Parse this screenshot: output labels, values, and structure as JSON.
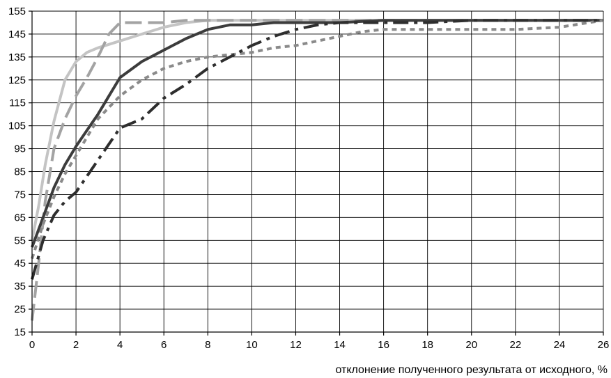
{
  "chart_data": {
    "type": "line",
    "title": "",
    "xlabel": "отклонение полученного результата от исходного, %",
    "ylabel": "",
    "xlim": [
      0,
      26
    ],
    "ylim": [
      15,
      155
    ],
    "xticks": [
      "0",
      "2",
      "4",
      "6",
      "8",
      "10",
      "12",
      "14",
      "16",
      "18",
      "20",
      "22",
      "24",
      "26"
    ],
    "yticks": [
      "15",
      "25",
      "35",
      "45",
      "55",
      "65",
      "75",
      "85",
      "95",
      "105",
      "115",
      "125",
      "135",
      "145",
      "155"
    ],
    "grid": true,
    "legend": "none",
    "series": [
      {
        "color": "#c4c4c4",
        "dash": "solid",
        "x": [
          0,
          0.3,
          0.6,
          1,
          1.5,
          2,
          2.5,
          3,
          4,
          5,
          6,
          7,
          8,
          10,
          12,
          14,
          16,
          18,
          20,
          22,
          24,
          26
        ],
        "y": [
          55,
          70,
          88,
          107,
          125,
          133,
          137,
          139,
          142,
          145,
          148,
          150,
          151,
          151,
          151,
          151,
          151,
          151,
          151,
          151,
          151,
          151
        ]
      },
      {
        "color": "#a3a3a3",
        "dash": "longdash",
        "x": [
          0,
          0.3,
          0.6,
          1,
          1.5,
          2,
          2.5,
          3,
          3.5,
          4,
          5,
          6,
          7,
          8,
          10,
          12,
          14,
          16,
          18,
          20,
          22,
          24,
          26
        ],
        "y": [
          20,
          45,
          72,
          95,
          108,
          118,
          126,
          135,
          145,
          150,
          150,
          150,
          151,
          151,
          151,
          151,
          151,
          151,
          151,
          151,
          151,
          151,
          151
        ]
      },
      {
        "color": "#3c3c3c",
        "dash": "solid",
        "x": [
          0,
          0.5,
          1,
          1.5,
          2,
          2.5,
          3,
          3.5,
          4,
          5,
          6,
          7,
          8,
          9,
          10,
          11,
          12,
          13,
          14,
          16,
          18,
          20,
          22,
          24,
          26
        ],
        "y": [
          52,
          65,
          78,
          88,
          96,
          103,
          110,
          118,
          126,
          133,
          138,
          143,
          147,
          149,
          149,
          150,
          150,
          150,
          150,
          151,
          151,
          151,
          151,
          151,
          151
        ]
      },
      {
        "color": "#8a8a8a",
        "dash": "dotted",
        "x": [
          0,
          0.5,
          1,
          1.5,
          2,
          2.5,
          3,
          4,
          5,
          6,
          7,
          8,
          9,
          10,
          11,
          12,
          13,
          14,
          15,
          16,
          18,
          20,
          22,
          24,
          26
        ],
        "y": [
          47,
          62,
          74,
          84,
          92,
          100,
          108,
          118,
          125,
          130,
          133,
          135,
          136,
          137,
          139,
          140,
          142,
          144,
          146,
          147,
          147,
          147,
          147,
          148,
          151
        ]
      },
      {
        "color": "#2e2e2e",
        "dash": "dashdot",
        "x": [
          0,
          0.5,
          1,
          1.5,
          2,
          3,
          4,
          5,
          6,
          7,
          8,
          9,
          10,
          11,
          12,
          13,
          14,
          16,
          18,
          20,
          22,
          24,
          26
        ],
        "y": [
          38,
          55,
          66,
          72,
          76,
          90,
          104,
          108,
          117,
          123,
          130,
          135,
          140,
          144,
          147,
          149,
          150,
          150,
          150,
          151,
          151,
          151,
          151
        ]
      }
    ]
  }
}
